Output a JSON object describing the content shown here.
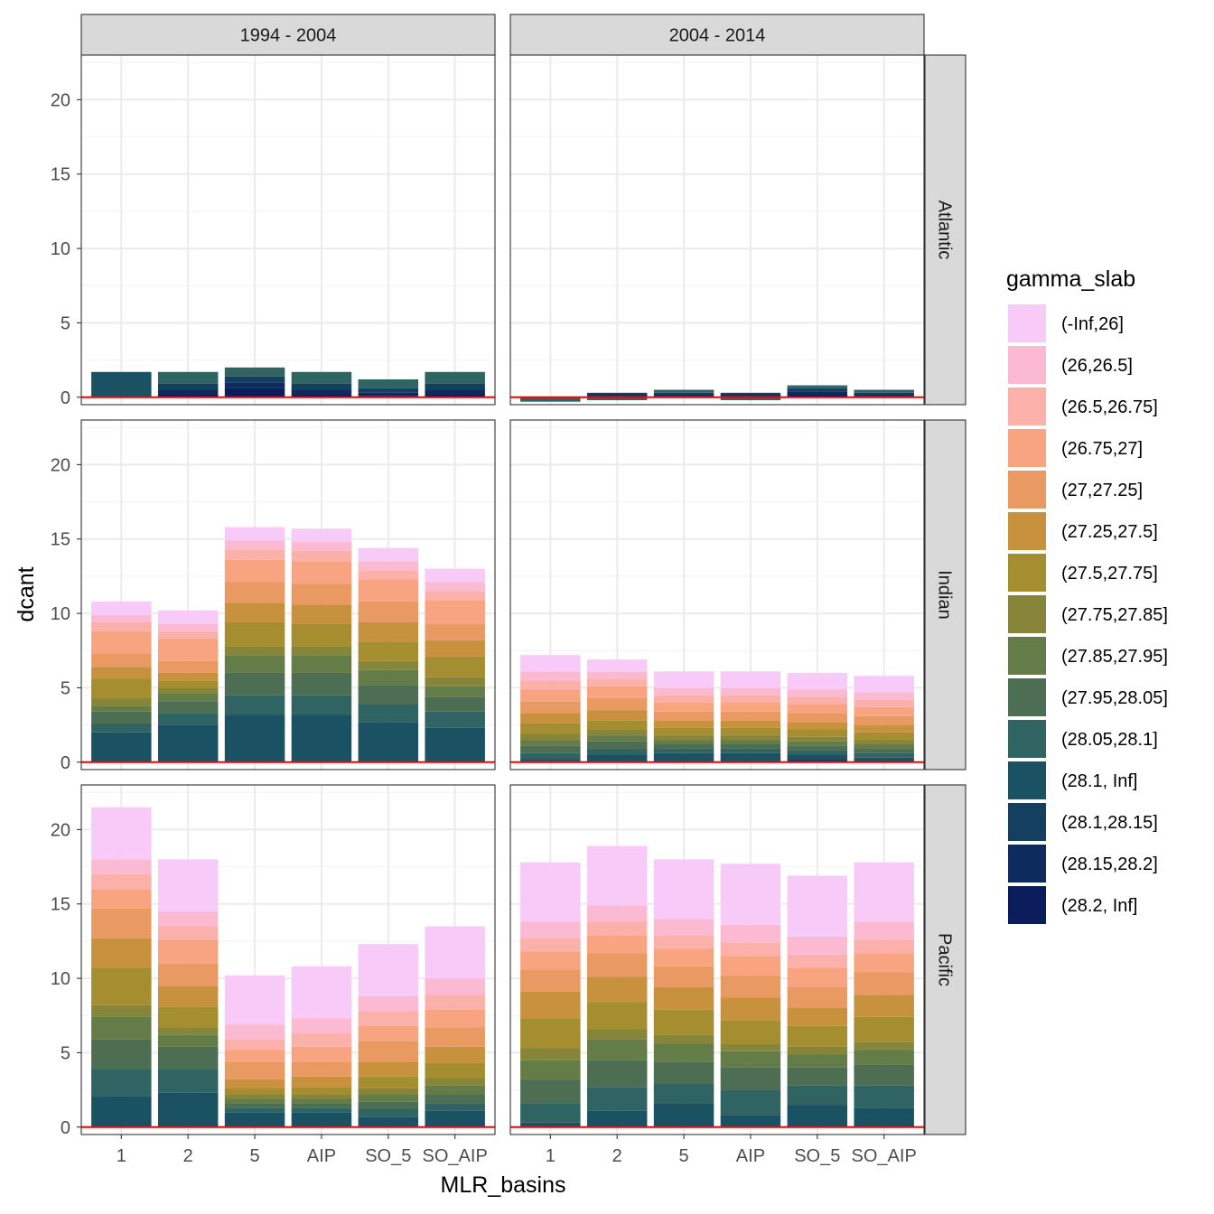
{
  "chart_data": {
    "type": "bar",
    "stacked": true,
    "facet_columns": [
      "1994 - 2004",
      "2004 - 2014"
    ],
    "facet_rows": [
      "Atlantic",
      "Indian",
      "Pacific"
    ],
    "categories": [
      "1",
      "2",
      "5",
      "AIP",
      "SO_5",
      "SO_AIP"
    ],
    "xlabel": "MLR_basins",
    "ylabel": "dcant",
    "ylim": [
      -0.5,
      23
    ],
    "yticks": [
      0,
      5,
      10,
      15,
      20
    ],
    "grid": true,
    "reference_line": {
      "y": 0,
      "color": "#ff0000"
    },
    "legend": {
      "title": "gamma_slab",
      "position": "right",
      "entries": [
        "(-Inf,26]",
        "(26,26.5]",
        "(26.5,26.75]",
        "(26.75,27]",
        "(27,27.25]",
        "(27.25,27.5]",
        "(27.5,27.75]",
        "(27.75,27.85]",
        "(27.85,27.95]",
        "(27.95,28.05]",
        "(28.05,28.1]",
        "(28.1, Inf]",
        "(28.1,28.15]",
        "(28.15,28.2]",
        "(28.2, Inf]"
      ],
      "colors": [
        "#f8caf8",
        "#fcbad2",
        "#fbb0aa",
        "#f8a481",
        "#e99a63",
        "#c8913e",
        "#a48e30",
        "#87853a",
        "#647c47",
        "#4d6e52",
        "#2f6462",
        "#1b5263",
        "#143f61",
        "#0e2b5d",
        "#0a1c59"
      ]
    },
    "panels": [
      {
        "column": "1994 - 2004",
        "row": "Atlantic",
        "stacks": [
          [
            0,
            0,
            0,
            0,
            0,
            0,
            0,
            0,
            0,
            0,
            0,
            1.7,
            0,
            0,
            0
          ],
          [
            0,
            0,
            0,
            0,
            0,
            0,
            0,
            0,
            0,
            0,
            0.8,
            0,
            0.4,
            0.3,
            0.2
          ],
          [
            0,
            0,
            0,
            0,
            0,
            0,
            0,
            0,
            0,
            0,
            0.6,
            0,
            0.4,
            0.4,
            0.6
          ],
          [
            0,
            0,
            0,
            0,
            0,
            0,
            0,
            0,
            0,
            0,
            0.8,
            0,
            0.4,
            0.3,
            0.2
          ],
          [
            0,
            0,
            0,
            0,
            0,
            0,
            0,
            0,
            0,
            0,
            0.6,
            0,
            0.3,
            0.2,
            0.1
          ],
          [
            0,
            0,
            0,
            0,
            0,
            0,
            0,
            0,
            0,
            0,
            0.8,
            0,
            0.4,
            0.3,
            0.2
          ]
        ]
      },
      {
        "column": "2004 - 2014",
        "row": "Atlantic",
        "stacks": [
          [
            0,
            0,
            0,
            0,
            0,
            0,
            0,
            0,
            0,
            0,
            -0.3,
            0,
            0,
            0,
            0
          ],
          [
            0,
            0,
            0,
            0,
            0,
            0,
            0,
            0,
            0,
            0,
            -0.2,
            0,
            0.1,
            0.1,
            0.1
          ],
          [
            0,
            0,
            0,
            0,
            0,
            0,
            0,
            0,
            0,
            0,
            0.2,
            0,
            0.1,
            0.1,
            0.1
          ],
          [
            0,
            0,
            0,
            0,
            0,
            0,
            0,
            0,
            0,
            0,
            -0.2,
            0,
            0.1,
            0.1,
            0.1
          ],
          [
            0,
            0,
            0,
            0,
            0,
            0,
            0,
            0,
            0,
            0,
            0.2,
            0,
            0.2,
            0.2,
            0.2
          ],
          [
            0,
            0,
            0,
            0,
            0,
            0,
            0,
            0,
            0,
            0,
            0.2,
            0,
            0.1,
            0.1,
            0.1
          ]
        ]
      },
      {
        "column": "1994 - 2004",
        "row": "Indian",
        "stacks": [
          [
            0.9,
            0.5,
            0.6,
            1.5,
            0.9,
            0.8,
            1.3,
            0.5,
            0.4,
            0.8,
            0.6,
            2,
            0,
            0,
            0
          ],
          [
            0.9,
            0.5,
            0.5,
            1.5,
            0.8,
            0.5,
            0.5,
            0.4,
            0.5,
            0.8,
            0.8,
            2.5,
            0,
            0,
            0
          ],
          [
            0.9,
            0.6,
            0.7,
            1.5,
            1.4,
            1.3,
            1.6,
            0.6,
            1.2,
            1.5,
            1.3,
            3.2,
            0,
            0,
            0
          ],
          [
            0.9,
            0.6,
            0.7,
            1.5,
            1.4,
            1.3,
            1.5,
            0.6,
            1.2,
            1.5,
            1.3,
            3.2,
            0,
            0,
            0
          ],
          [
            0.9,
            0.6,
            0.6,
            1.5,
            1.4,
            1.3,
            1.3,
            0.6,
            1,
            1.3,
            1.2,
            2.7,
            0,
            0,
            0
          ],
          [
            0.9,
            0.6,
            0.6,
            1.6,
            1.1,
            1.1,
            1.4,
            0.6,
            0.7,
            1,
            1.1,
            2.3,
            0,
            0,
            0
          ]
        ]
      },
      {
        "column": "2004 - 2014",
        "row": "Indian",
        "stacks": [
          [
            1.1,
            0.6,
            0.6,
            0.8,
            0.8,
            0.7,
            0.7,
            0.4,
            0.4,
            0.5,
            0.4,
            0.1,
            0.1,
            0,
            0
          ],
          [
            0.8,
            0.5,
            0.5,
            0.8,
            0.8,
            0.7,
            0.6,
            0.4,
            0.4,
            0.5,
            0.4,
            0.5,
            0,
            0,
            0
          ],
          [
            1.1,
            0.5,
            0.5,
            0.6,
            0.6,
            0.5,
            0.5,
            0.3,
            0.3,
            0.3,
            0.3,
            0.6,
            0,
            0,
            0
          ],
          [
            1.1,
            0.5,
            0.5,
            0.6,
            0.6,
            0.5,
            0.5,
            0.3,
            0.3,
            0.3,
            0.3,
            0.6,
            0,
            0,
            0
          ],
          [
            1.1,
            0.5,
            0.5,
            0.6,
            0.6,
            0.5,
            0.5,
            0.3,
            0.3,
            0.3,
            0.3,
            0.3,
            0.2,
            0,
            0
          ],
          [
            1.1,
            0.5,
            0.5,
            0.6,
            0.6,
            0.5,
            0.5,
            0.3,
            0.3,
            0.3,
            0.3,
            0.3,
            0,
            0,
            0
          ]
        ]
      },
      {
        "column": "1994 - 2004",
        "row": "Pacific",
        "stacks": [
          [
            3.5,
            1,
            1,
            1.3,
            2,
            2,
            2.5,
            0.8,
            1.5,
            2,
            1.8,
            2.1,
            0,
            0,
            0
          ],
          [
            3.5,
            1,
            0.9,
            1.6,
            1.5,
            1.4,
            1.4,
            0.5,
            0.8,
            1.5,
            1.6,
            2.3,
            0,
            0,
            0
          ],
          [
            3.3,
            1,
            0.7,
            0.8,
            1.2,
            0.6,
            0.4,
            0.3,
            0.3,
            0.3,
            0.3,
            1,
            0,
            0,
            0
          ],
          [
            3.5,
            1,
            0.9,
            1,
            1,
            0.7,
            0.5,
            0.3,
            0.3,
            0.3,
            0.3,
            1,
            0,
            0,
            0
          ],
          [
            3.5,
            1,
            1,
            1,
            1.4,
            1,
            0.8,
            0.4,
            0.5,
            0.5,
            0.5,
            0.7,
            0,
            0,
            0
          ],
          [
            3.5,
            1.1,
            1,
            1.2,
            1.3,
            1.1,
            1,
            0.5,
            0.6,
            0.6,
            0.5,
            1.1,
            0,
            0,
            0
          ]
        ]
      },
      {
        "column": "2004 - 2014",
        "row": "Pacific",
        "stacks": [
          [
            4,
            1.1,
            0.9,
            1.2,
            1.5,
            1.8,
            2,
            0.8,
            1.3,
            1.6,
            1.3,
            0.3,
            0,
            0,
            0
          ],
          [
            4,
            1.1,
            0.9,
            1.2,
            1.6,
            1.7,
            1.8,
            0.7,
            1.4,
            1.8,
            1.6,
            1.1,
            0,
            0,
            0
          ],
          [
            4,
            1.1,
            0.9,
            1.2,
            1.4,
            1.5,
            1.7,
            0.6,
            1.2,
            1.5,
            1.3,
            1.6,
            0,
            0,
            0
          ],
          [
            4.1,
            1.2,
            0.9,
            1.3,
            1.5,
            1.5,
            1.6,
            0.5,
            1.1,
            1.5,
            1.7,
            0.8,
            0,
            0,
            0
          ],
          [
            4.1,
            1.2,
            0.9,
            1.3,
            1.4,
            1.2,
            1.4,
            0.5,
            0.9,
            1.2,
            1.3,
            1.5,
            0,
            0,
            0
          ],
          [
            4,
            1.2,
            0.9,
            1.3,
            1.5,
            1.5,
            1.7,
            0.5,
            1,
            1.4,
            1.5,
            1.3,
            0,
            0,
            0
          ]
        ]
      }
    ]
  }
}
